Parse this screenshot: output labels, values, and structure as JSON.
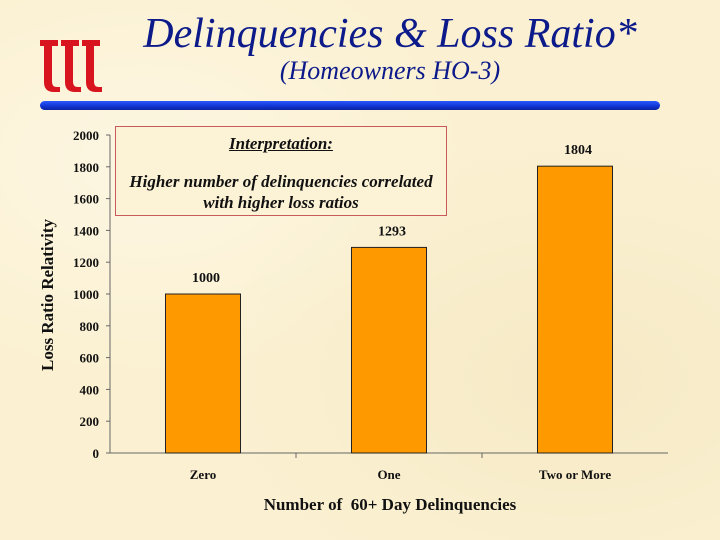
{
  "slide": {
    "title": "Delinquencies & Loss Ratio*",
    "subtitle": "(Homeowners HO-3)",
    "logo_icon": "triple-t-logo",
    "colors": {
      "title": "#0c1a8a",
      "rule": "#1236d4",
      "logo": "#d8141e",
      "background": "#fbf1d2"
    }
  },
  "note": {
    "heading": "Interpretation:",
    "text": "Higher number of delinquencies correlated with higher loss ratios"
  },
  "chart_data": {
    "type": "bar",
    "title": "",
    "xlabel": "Number of  60+ Day Delinquencies",
    "ylabel": "Loss Ratio Relativity",
    "categories": [
      "Zero",
      "One",
      "Two or More"
    ],
    "values": [
      1000,
      1293,
      1804
    ],
    "data_labels": [
      "1000",
      "1293",
      "1804"
    ],
    "ylim": [
      0,
      2000
    ],
    "yticks": [
      0,
      200,
      400,
      600,
      800,
      1000,
      1200,
      1400,
      1600,
      1800,
      2000
    ],
    "grid": false,
    "legend": "none",
    "bar_color": "#ff9900",
    "bar_edge_color": "#222222"
  }
}
